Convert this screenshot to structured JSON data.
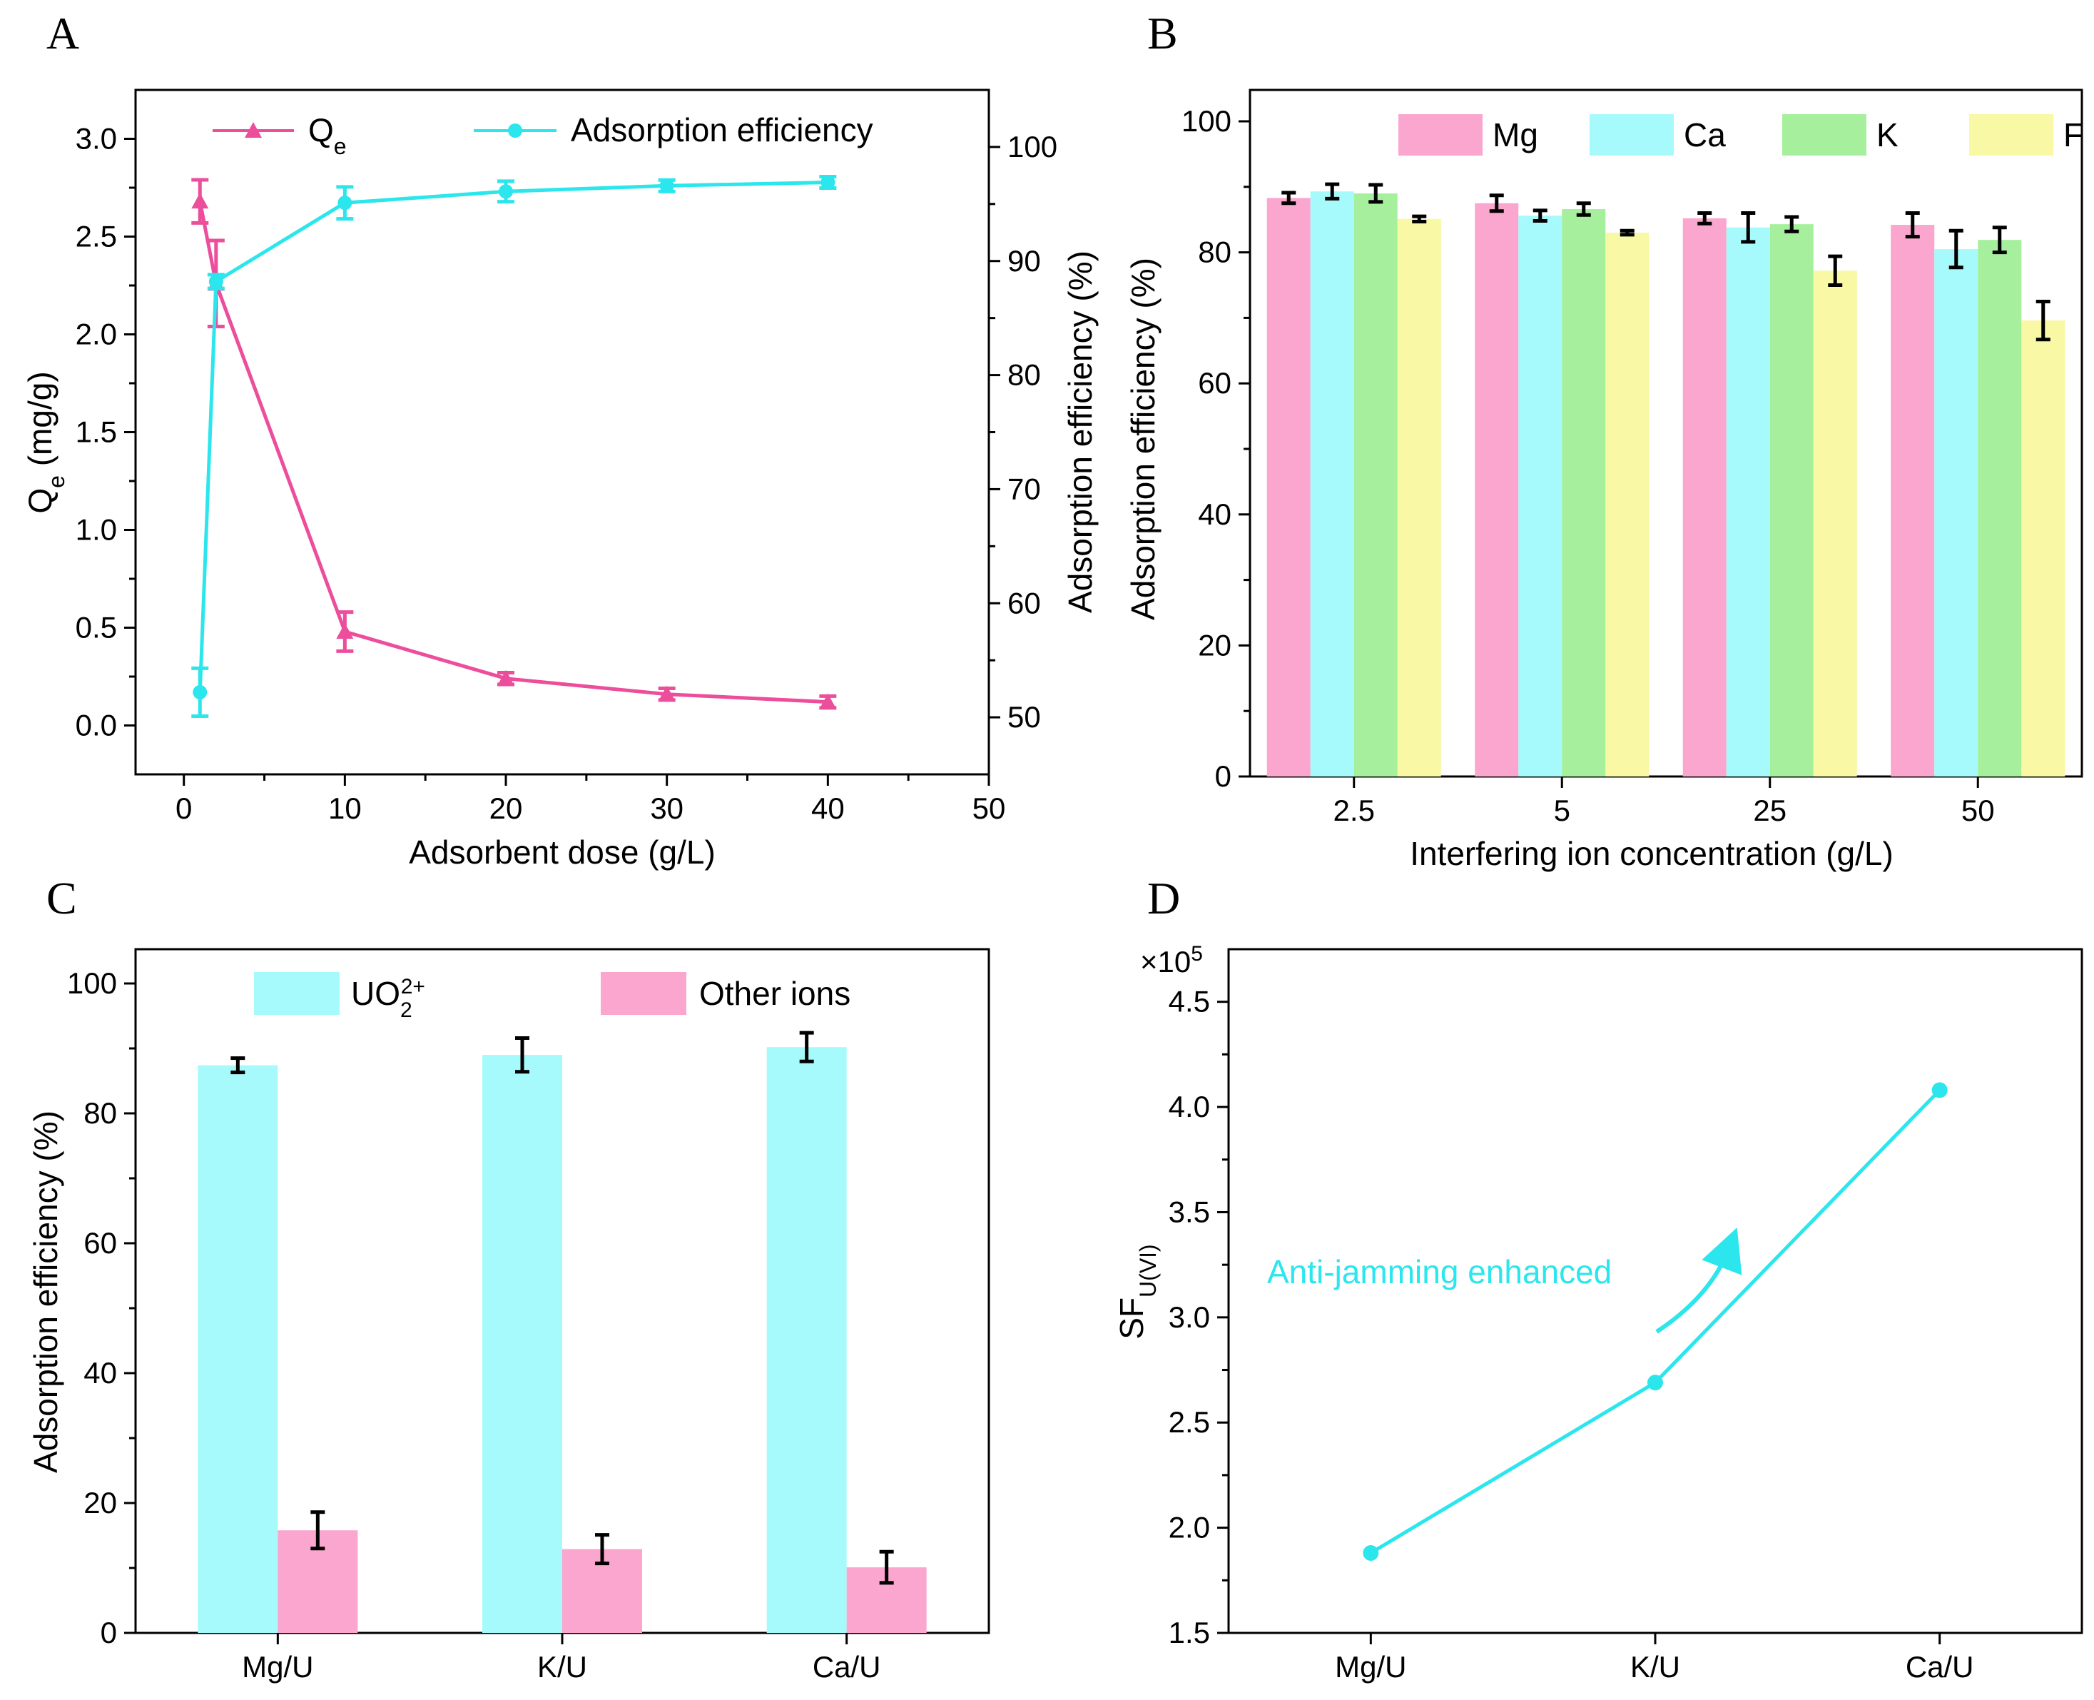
{
  "panels": {
    "A": {
      "letter": "A",
      "chart_data": {
        "type": "line",
        "xlabel": "Adsorbent dose (g/L)",
        "ylabel_left": "Qe (mg/g)",
        "ylabel_right": "Adsorption efficiency (%)",
        "xlim": [
          -3,
          50
        ],
        "ylim_left": [
          -0.25,
          3.25
        ],
        "ylim_right": [
          45,
          105
        ],
        "x_ticks": [
          "0",
          "10",
          "20",
          "30",
          "40",
          "50"
        ],
        "y_left_ticks": [
          "0.0",
          "0.5",
          "1.0",
          "1.5",
          "2.0",
          "2.5",
          "3.0"
        ],
        "y_right_ticks": [
          "50",
          "60",
          "70",
          "80",
          "90",
          "100"
        ],
        "series": [
          {
            "name": "Qe",
            "axis": "left",
            "marker": "triangle",
            "color": "#EC4E9C",
            "x": [
              1,
              2,
              10,
              20,
              30,
              40
            ],
            "values": [
              2.68,
              2.26,
              0.48,
              0.24,
              0.16,
              0.12
            ],
            "errors": [
              0.11,
              0.22,
              0.1,
              0.03,
              0.03,
              0.03
            ]
          },
          {
            "name": "Adsorption efficiency",
            "axis": "right",
            "marker": "circle",
            "color": "#2BE6EC",
            "x": [
              1,
              2,
              10,
              20,
              30,
              40
            ],
            "values": [
              52.2,
              88.2,
              95.1,
              96.1,
              96.6,
              96.9
            ],
            "errors": [
              2.1,
              0.6,
              1.4,
              0.9,
              0.5,
              0.5
            ]
          }
        ]
      }
    },
    "B": {
      "letter": "B",
      "chart_data": {
        "type": "bar",
        "xlabel": "Interfering ion concentration (g/L)",
        "ylabel": "Adsorption efficiency (%)",
        "ylim": [
          0,
          100
        ],
        "y_ticks": [
          "0",
          "20",
          "40",
          "60",
          "80",
          "100"
        ],
        "categories": [
          "2.5",
          "5",
          "25",
          "50"
        ],
        "series": [
          {
            "name": "Mg",
            "color": "#FAA6CE",
            "values": [
              88.3,
              87.5,
              85.2,
              84.2
            ],
            "errors": [
              0.8,
              1.2,
              0.8,
              1.8
            ]
          },
          {
            "name": "Ca",
            "color": "#A7FAFB",
            "values": [
              89.3,
              85.6,
              83.8,
              80.5
            ],
            "errors": [
              1.1,
              0.8,
              2.2,
              2.8
            ]
          },
          {
            "name": "K",
            "color": "#A6F09D",
            "values": [
              89.0,
              86.6,
              84.3,
              81.9
            ],
            "errors": [
              1.3,
              0.9,
              1.1,
              1.9
            ]
          },
          {
            "name": "F",
            "color": "#F9F8A4",
            "values": [
              85.1,
              83.0,
              77.2,
              69.6
            ],
            "errors": [
              0.4,
              0.3,
              2.2,
              2.9
            ]
          }
        ]
      }
    },
    "C": {
      "letter": "C",
      "chart_data": {
        "type": "bar",
        "xlabel": "",
        "ylabel": "Adsorption efficiency (%)",
        "ylim": [
          0,
          100
        ],
        "y_ticks": [
          "0",
          "20",
          "40",
          "60",
          "80",
          "100"
        ],
        "categories": [
          "Mg/U",
          "K/U",
          "Ca/U"
        ],
        "series": [
          {
            "name": "UO2 2+",
            "label_main": "UO",
            "label_sub": "2",
            "label_sup": "2+",
            "color": "#A7FAFB",
            "values": [
              87.4,
              89.0,
              90.2
            ],
            "errors": [
              1.1,
              2.6,
              2.2
            ]
          },
          {
            "name": "Other ions",
            "color": "#FAA6CE",
            "values": [
              15.8,
              12.9,
              10.1
            ],
            "errors": [
              2.8,
              2.2,
              2.4
            ]
          }
        ]
      }
    },
    "D": {
      "letter": "D",
      "chart_data": {
        "type": "line",
        "xlabel": "",
        "ylabel_main": "SF",
        "ylabel_sub": "U(VI)",
        "multiplier_main": "×10",
        "multiplier_exp": "5",
        "ylim": [
          1.5,
          4.75
        ],
        "y_ticks": [
          "1.5",
          "2.0",
          "2.5",
          "3.0",
          "3.5",
          "4.0",
          "4.5"
        ],
        "categories": [
          "Mg/U",
          "K/U",
          "Ca/U"
        ],
        "series": [
          {
            "name": "SF U(VI)",
            "color": "#2BE6EC",
            "values": [
              1.88,
              2.69,
              4.08
            ]
          }
        ],
        "annotation": "Anti-jamming enhanced"
      }
    }
  }
}
